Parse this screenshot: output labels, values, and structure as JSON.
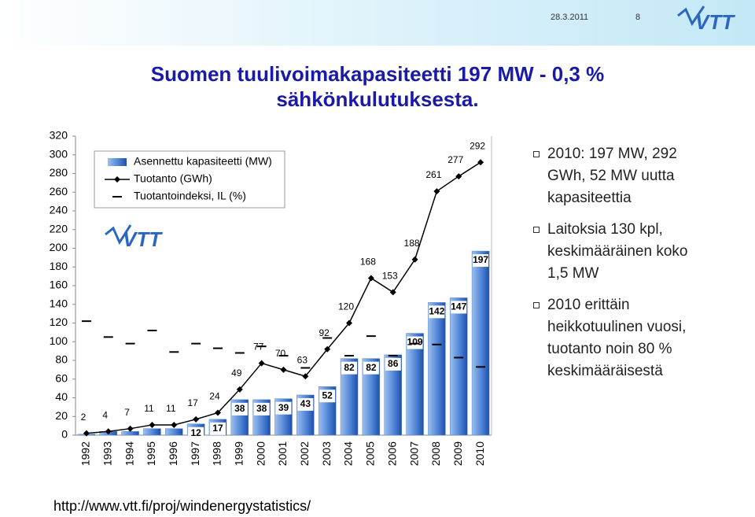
{
  "slide": {
    "date": "28.3.2011",
    "page": "8",
    "title": "Suomen tuulivoimakapasiteetti 197 MW - 0,3 % sähkönkulutuksesta.",
    "bullets": [
      [
        "2010: 197 MW, 292",
        "GWh, 52 MW uutta",
        "kapasiteettia"
      ],
      [
        "Laitoksia 130 kpl,",
        "keskimääräinen koko",
        "1,5 MW"
      ],
      [
        "2010 erittäin",
        "heikkotuulinen vuosi,",
        "tuotanto noin 80 %",
        "keskimääräisestä"
      ]
    ],
    "url": "http://www.vtt.fi/proj/windenergystatistics/"
  },
  "chart_data": {
    "type": "bar_line",
    "categories": [
      "1992",
      "1993",
      "1994",
      "1995",
      "1996",
      "1997",
      "1998",
      "1999",
      "2000",
      "2001",
      "2002",
      "2003",
      "2004",
      "2005",
      "2006",
      "2007",
      "2008",
      "2009",
      "2010"
    ],
    "ylim": [
      0,
      320
    ],
    "yticks": [
      0,
      20,
      40,
      60,
      80,
      100,
      120,
      140,
      160,
      180,
      200,
      220,
      240,
      260,
      280,
      300,
      320
    ],
    "grid": false,
    "series": [
      {
        "name": "Asennettu kapasiteetti (MW)",
        "kind": "bar",
        "color": "#4a7fd4",
        "values": [
          1,
          4,
          4,
          7,
          7,
          12,
          17,
          38,
          38,
          39,
          43,
          52,
          82,
          82,
          86,
          109,
          142,
          147,
          197
        ],
        "value_labels": [
          null,
          null,
          null,
          null,
          null,
          "12",
          "17",
          "38",
          "38",
          "39",
          "43",
          "52",
          "82",
          "82",
          "86",
          "109",
          "142",
          "147",
          "197"
        ]
      },
      {
        "name": "Tuotanto (GWh)",
        "kind": "line",
        "color": "#000000",
        "values": [
          2,
          4,
          7,
          11,
          11,
          17,
          24,
          49,
          77,
          70,
          63,
          92,
          120,
          168,
          153,
          188,
          261,
          277,
          292
        ]
      },
      {
        "name": "Tuotantoindeksi, IL (%)",
        "kind": "dash",
        "color": "#000000",
        "values": [
          122,
          105,
          98,
          112,
          89,
          98,
          93,
          88,
          95,
          85,
          72,
          104,
          85,
          106,
          85,
          98,
          97,
          83,
          73
        ]
      }
    ]
  }
}
